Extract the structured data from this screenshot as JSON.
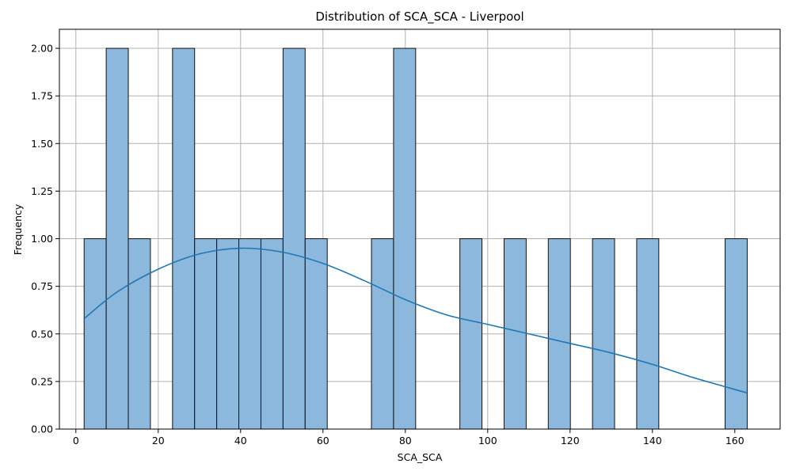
{
  "chart_data": {
    "type": "bar",
    "title": "Distribution of SCA_SCA - Liverpool",
    "xlabel": "SCA_SCA",
    "ylabel": "Frequency",
    "xlim": [
      -4.0,
      171.0
    ],
    "ylim": [
      0,
      2.1
    ],
    "grid": true,
    "x_ticks": [
      0,
      20,
      40,
      60,
      80,
      100,
      120,
      140,
      160
    ],
    "y_ticks": [
      0.0,
      0.25,
      0.5,
      0.75,
      1.0,
      1.25,
      1.5,
      1.75,
      2.0
    ],
    "x_tick_labels": [
      "0",
      "20",
      "40",
      "60",
      "80",
      "100",
      "120",
      "140",
      "160"
    ],
    "y_tick_labels": [
      "0.00",
      "0.25",
      "0.50",
      "0.75",
      "1.00",
      "1.25",
      "1.50",
      "1.75",
      "2.00"
    ],
    "bin_start": 2.0,
    "bin_width": 5.367,
    "counts": [
      1,
      2,
      1,
      0,
      2,
      1,
      1,
      1,
      1,
      2,
      1,
      0,
      0,
      1,
      2,
      0,
      0,
      1,
      0,
      1,
      0,
      1,
      0,
      1,
      0,
      1,
      0,
      0,
      0,
      1
    ],
    "bar_color": "#8bb8dc",
    "edge_color": "#111111",
    "kde": {
      "color": "#1f77b4",
      "x": [
        2,
        10,
        20,
        30,
        40,
        50,
        60,
        70,
        80,
        90,
        100,
        110,
        120,
        130,
        140,
        150,
        163
      ],
      "y": [
        0.58,
        0.72,
        0.84,
        0.92,
        0.95,
        0.93,
        0.87,
        0.78,
        0.68,
        0.6,
        0.55,
        0.5,
        0.45,
        0.4,
        0.34,
        0.27,
        0.19
      ]
    }
  }
}
